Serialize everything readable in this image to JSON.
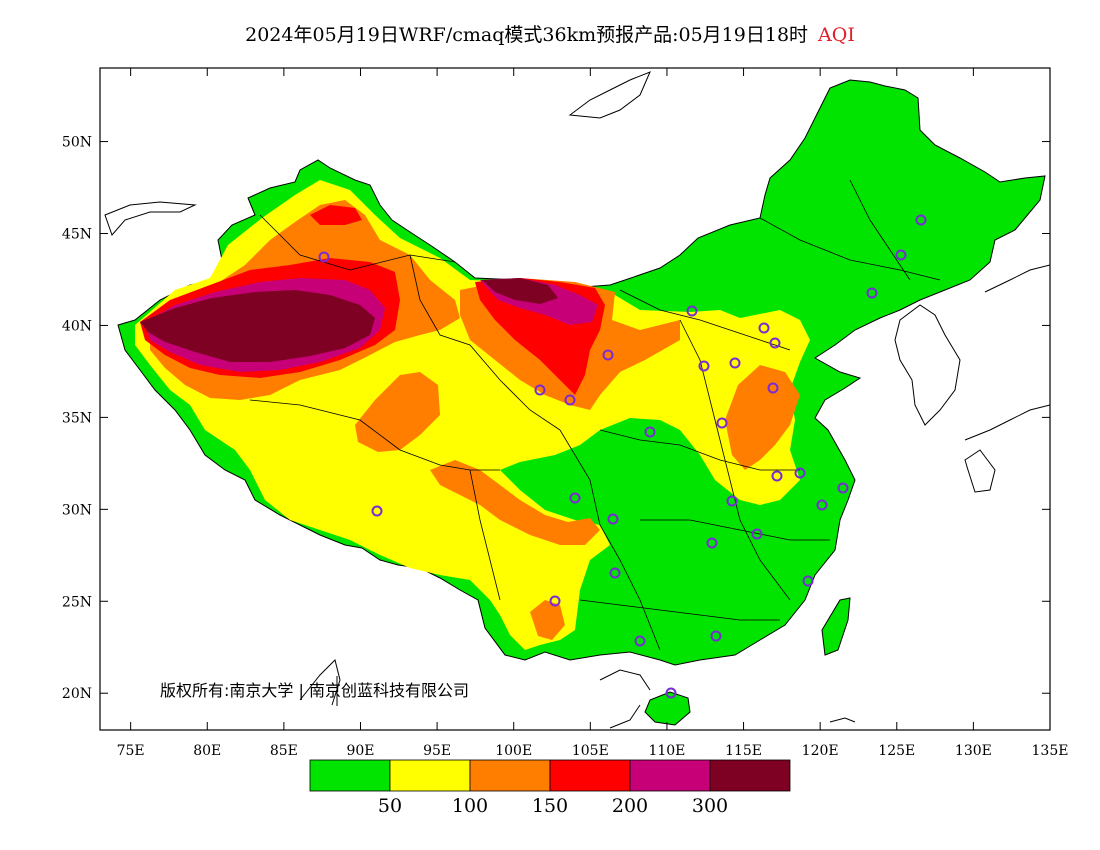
{
  "title": {
    "main": "2024年05月19日WRF/cmaq模式36km预报产品:05月19日18时",
    "variable": "AQI"
  },
  "map": {
    "lon_range": [
      73,
      135
    ],
    "lat_range": [
      18,
      54
    ],
    "x_ticks": [
      "75E",
      "80E",
      "85E",
      "90E",
      "95E",
      "100E",
      "105E",
      "110E",
      "115E",
      "120E",
      "125E",
      "130E",
      "135E"
    ],
    "y_ticks": [
      "20N",
      "25N",
      "30N",
      "35N",
      "40N",
      "45N",
      "50N"
    ],
    "copyright": "版权所有:南京大学 | 南京创蓝科技有限公司",
    "colors": {
      "ocean": "#ffffff",
      "land_outline": "#000000",
      "station_marker": "#7a2bd6"
    }
  },
  "legend": {
    "colors": [
      "#00e400",
      "#ffff00",
      "#ff7e00",
      "#ff0000",
      "#c80078",
      "#7e0023"
    ],
    "labels": [
      "50",
      "100",
      "150",
      "200",
      "300"
    ]
  }
}
